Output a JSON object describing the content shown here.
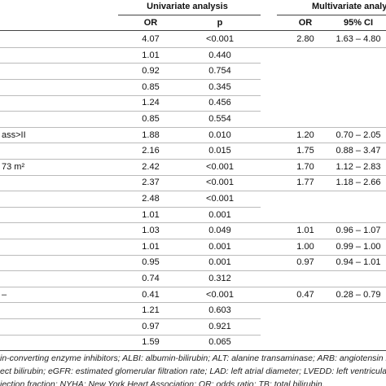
{
  "header": {
    "univariate": "Univariate analysis",
    "multivariate": "Multivariate analy",
    "columns": [
      "OR",
      "p",
      "OR",
      "95% CI"
    ]
  },
  "table": {
    "rows": [
      {
        "or": "4.07",
        "p": "<0.001",
        "mor": "2.80",
        "ci": "1.63 – 4.80"
      },
      {
        "or": "1.01",
        "p": "0.440"
      },
      {
        "or": "0.92",
        "p": "0.754"
      },
      {
        "or": "0.85",
        "p": "0.345"
      },
      {
        "or": "1.24",
        "p": "0.456"
      },
      {
        "or": "0.85",
        "p": "0.554"
      },
      {
        "label": "ass>II",
        "or": "1.88",
        "p": "0.010",
        "mor": "1.20",
        "ci": "0.70 – 2.05"
      },
      {
        "or": "2.16",
        "p": "0.015",
        "mor": "1.75",
        "ci": "0.88 – 3.47"
      },
      {
        "label": "73 m²",
        "or": "2.42",
        "p": "<0.001",
        "mor": "1.70",
        "ci": "1.12 – 2.83"
      },
      {
        "or": "2.37",
        "p": "<0.001",
        "mor": "1.77",
        "ci": "1.18 – 2.66"
      },
      {
        "or": "2.48",
        "p": "<0.001"
      },
      {
        "or": "1.01",
        "p": "0.001"
      },
      {
        "or": "1.03",
        "p": "0.049",
        "mor": "1.01",
        "ci": "0.96 – 1.07"
      },
      {
        "or": "1.01",
        "p": "0.001",
        "mor": "1.00",
        "ci": "0.99 – 1.00"
      },
      {
        "or": "0.95",
        "p": "0.001",
        "mor": "0.97",
        "ci": "0.94 – 1.01"
      },
      {
        "or": "0.74",
        "p": "0.312"
      },
      {
        "label": "–",
        "or": "0.41",
        "p": "<0.001",
        "mor": "0.47",
        "ci": "0.28 – 0.79"
      },
      {
        "or": "1.21",
        "p": "0.603"
      },
      {
        "or": "0.97",
        "p": "0.921"
      },
      {
        "or": "1.59",
        "p": "0.065"
      }
    ]
  },
  "footnotes": [
    "in-converting enzyme inhibitors; ALBI: albumin-bilirubin; ALT: alanine transaminase; ARB: angiotensin receptor bloc",
    "ect bilirubin; eGFR: estimated glomerular filtration rate; LAD: left atrial diameter; LVEDD: left ventricular end-diastolo",
    "jection fraction; NYHA: New York Heart Association; OR: odds ratio; TB: total bilirubin."
  ]
}
